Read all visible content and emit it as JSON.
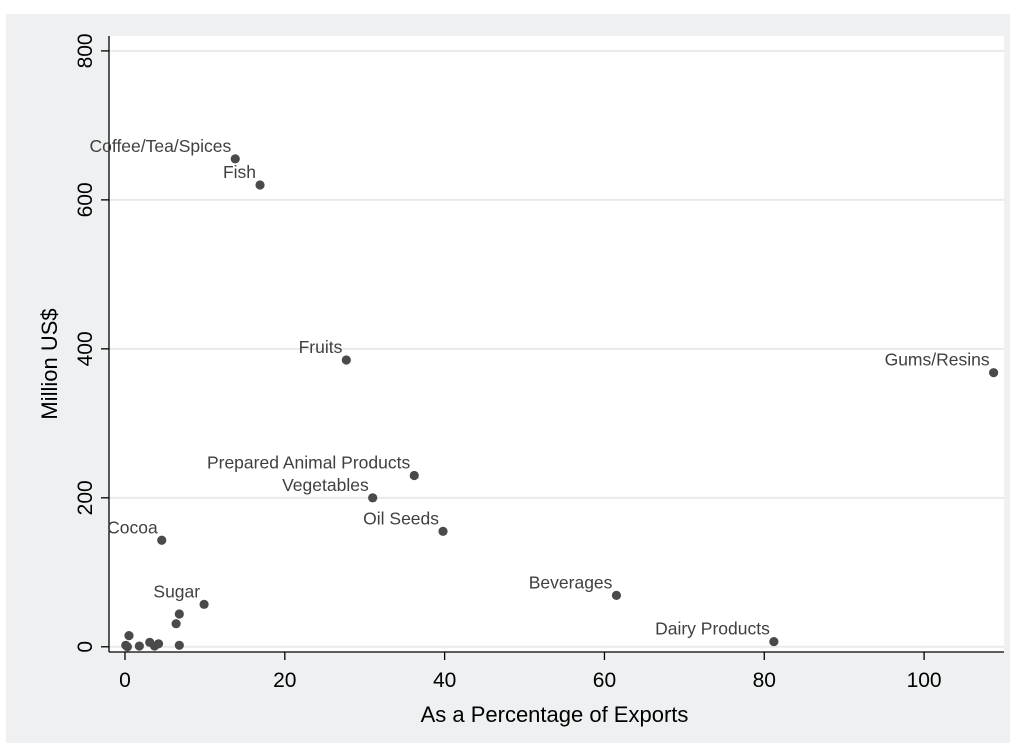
{
  "chart_data": {
    "type": "scatter",
    "title": "",
    "xlabel": "As a Percentage of Exports",
    "ylabel": "Million US$",
    "xlim": [
      -2,
      110
    ],
    "ylim": [
      -7,
      820
    ],
    "xticks": [
      0,
      20,
      40,
      60,
      80,
      100
    ],
    "yticks": [
      0,
      200,
      400,
      600,
      800
    ],
    "grid": "horizontal",
    "points": [
      {
        "x": 13.8,
        "y": 655,
        "label": "Coffee/Tea/Spices"
      },
      {
        "x": 16.9,
        "y": 620,
        "label": "Fish"
      },
      {
        "x": 27.7,
        "y": 385,
        "label": "Fruits"
      },
      {
        "x": 108.7,
        "y": 368,
        "label": "Gums/Resins"
      },
      {
        "x": 36.2,
        "y": 230,
        "label": "Prepared Animal Products"
      },
      {
        "x": 31.0,
        "y": 200,
        "label": "Vegetables"
      },
      {
        "x": 39.8,
        "y": 155,
        "label": "Oil Seeds"
      },
      {
        "x": 4.6,
        "y": 143,
        "label": "Cocoa"
      },
      {
        "x": 9.9,
        "y": 57,
        "label": "Sugar"
      },
      {
        "x": 61.5,
        "y": 69,
        "label": "Beverages"
      },
      {
        "x": 81.2,
        "y": 7,
        "label": "Dairy Products"
      },
      {
        "x": 6.8,
        "y": 44,
        "label": ""
      },
      {
        "x": 6.4,
        "y": 31,
        "label": ""
      },
      {
        "x": 0.5,
        "y": 15,
        "label": ""
      },
      {
        "x": 0.1,
        "y": 2,
        "label": ""
      },
      {
        "x": 0.3,
        "y": 0,
        "label": ""
      },
      {
        "x": 1.8,
        "y": 1,
        "label": ""
      },
      {
        "x": 3.1,
        "y": 6,
        "label": ""
      },
      {
        "x": 3.7,
        "y": 1,
        "label": ""
      },
      {
        "x": 4.2,
        "y": 4,
        "label": ""
      },
      {
        "x": 6.8,
        "y": 2,
        "label": ""
      }
    ]
  }
}
